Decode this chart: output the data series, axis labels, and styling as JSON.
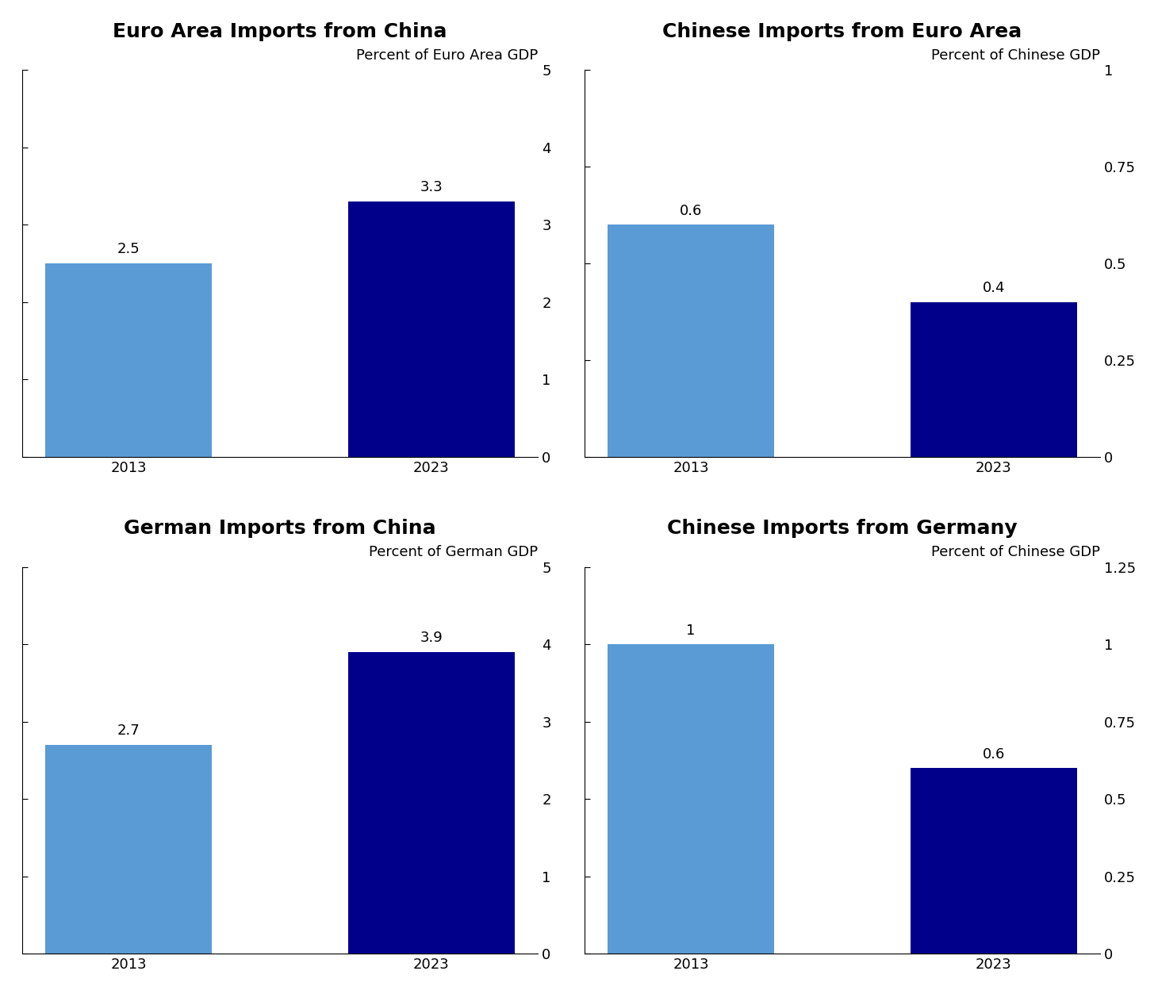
{
  "panels": [
    {
      "title": "Euro Area Imports from China",
      "subtitle": "Percent of Euro Area GDP",
      "categories": [
        "2013",
        "2023"
      ],
      "values": [
        2.5,
        3.3
      ],
      "ylim": [
        0,
        5
      ],
      "yticks": [
        0,
        1,
        2,
        3,
        4,
        5
      ],
      "bar_colors": [
        "#5b9bd5",
        "#00008b"
      ],
      "bar_labels": [
        "2.5",
        "3.3"
      ]
    },
    {
      "title": "Chinese Imports from Euro Area",
      "subtitle": "Percent of Chinese GDP",
      "categories": [
        "2013",
        "2023"
      ],
      "values": [
        0.6,
        0.4
      ],
      "ylim": [
        0,
        1.0
      ],
      "yticks": [
        0.0,
        0.25,
        0.5,
        0.75,
        1.0
      ],
      "bar_colors": [
        "#5b9bd5",
        "#00008b"
      ],
      "bar_labels": [
        "0.6",
        "0.4"
      ]
    },
    {
      "title": "German Imports from China",
      "subtitle": "Percent of German GDP",
      "categories": [
        "2013",
        "2023"
      ],
      "values": [
        2.7,
        3.9
      ],
      "ylim": [
        0,
        5
      ],
      "yticks": [
        0,
        1,
        2,
        3,
        4,
        5
      ],
      "bar_colors": [
        "#5b9bd5",
        "#00008b"
      ],
      "bar_labels": [
        "2.7",
        "3.9"
      ]
    },
    {
      "title": "Chinese Imports from Germany",
      "subtitle": "Percent of Chinese GDP",
      "categories": [
        "2013",
        "2023"
      ],
      "values": [
        1.0,
        0.6
      ],
      "ylim": [
        0,
        1.25
      ],
      "yticks": [
        0.0,
        0.25,
        0.5,
        0.75,
        1.0,
        1.25
      ],
      "bar_colors": [
        "#5b9bd5",
        "#00008b"
      ],
      "bar_labels": [
        "1",
        "0.6"
      ]
    }
  ],
  "light_blue": "#5b9bd5",
  "dark_blue": "#00008b",
  "background_color": "#ffffff",
  "title_fontsize": 18,
  "subtitle_fontsize": 13,
  "tick_fontsize": 13,
  "bar_label_fontsize": 13
}
